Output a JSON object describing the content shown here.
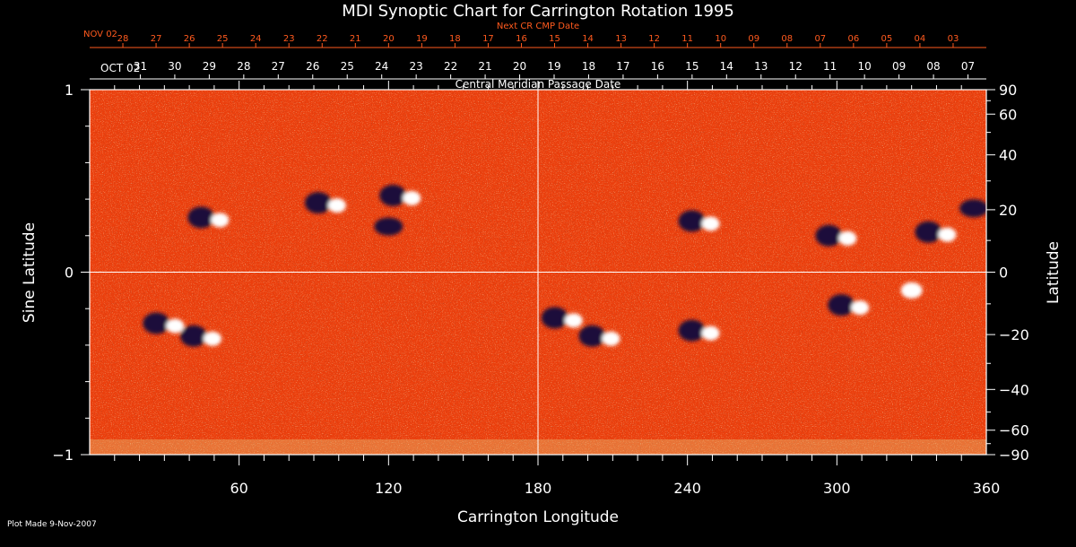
{
  "chart_data": {
    "type": "heatmap",
    "title": "MDI Synoptic Chart for Carrington Rotation 1995",
    "xlabel": "Carrington Longitude",
    "ylabel_left": "Sine Latitude",
    "ylabel_right": "Latitude",
    "xlim": [
      0,
      360
    ],
    "ylim": [
      -1,
      1
    ],
    "x_ticks": [
      60,
      120,
      180,
      240,
      300,
      360
    ],
    "y_ticks_left": [
      -1,
      0,
      1
    ],
    "y_ticks_left_labels": [
      "−1",
      "0",
      "1"
    ],
    "y_ticks_right": [
      -90,
      -60,
      -40,
      -20,
      0,
      20,
      40,
      60,
      90
    ],
    "y_ticks_right_labels": [
      "−90",
      "−60",
      "−40",
      "−20",
      "0",
      "20",
      "40",
      "60",
      "90"
    ],
    "grid_lines": {
      "x": [
        180
      ],
      "y": [
        0
      ]
    },
    "cmp_date_label": "Central Meridian Passage Date",
    "cmp_start_label": "OCT 02",
    "cmp_dates": [
      "31",
      "30",
      "29",
      "28",
      "27",
      "26",
      "25",
      "24",
      "23",
      "22",
      "21",
      "20",
      "19",
      "18",
      "17",
      "16",
      "15",
      "14",
      "13",
      "12",
      "11",
      "10",
      "09",
      "08",
      "07"
    ],
    "next_cr_label": "Next CR CMP Date",
    "next_cr_start_label": "NOV 02",
    "next_cr_dates": [
      "28",
      "27",
      "26",
      "25",
      "24",
      "23",
      "22",
      "21",
      "20",
      "19",
      "18",
      "17",
      "16",
      "15",
      "14",
      "13",
      "12",
      "11",
      "10",
      "09",
      "08",
      "07",
      "06",
      "05",
      "04",
      "03"
    ],
    "colors": {
      "background_field": "#ff4a10",
      "positive_polarity": "#ffffff",
      "negative_polarity": "#1a0a3a",
      "axes": "#ffffff",
      "next_cr": "#ff5a1e"
    },
    "active_regions": [
      {
        "lon": 48,
        "sinlat": 0.3,
        "polarity": "mixed"
      },
      {
        "lon": 95,
        "sinlat": 0.38,
        "polarity": "mixed"
      },
      {
        "lon": 125,
        "sinlat": 0.42,
        "polarity": "mixed"
      },
      {
        "lon": 120,
        "sinlat": 0.25,
        "polarity": "negative"
      },
      {
        "lon": 245,
        "sinlat": 0.28,
        "polarity": "mixed"
      },
      {
        "lon": 300,
        "sinlat": 0.2,
        "polarity": "mixed"
      },
      {
        "lon": 340,
        "sinlat": 0.22,
        "polarity": "mixed"
      },
      {
        "lon": 355,
        "sinlat": 0.35,
        "polarity": "negative"
      },
      {
        "lon": 30,
        "sinlat": -0.28,
        "polarity": "mixed"
      },
      {
        "lon": 45,
        "sinlat": -0.35,
        "polarity": "mixed"
      },
      {
        "lon": 190,
        "sinlat": -0.25,
        "polarity": "mixed"
      },
      {
        "lon": 205,
        "sinlat": -0.35,
        "polarity": "mixed"
      },
      {
        "lon": 245,
        "sinlat": -0.32,
        "polarity": "mixed"
      },
      {
        "lon": 305,
        "sinlat": -0.18,
        "polarity": "mixed"
      },
      {
        "lon": 330,
        "sinlat": -0.1,
        "polarity": "positive"
      }
    ]
  },
  "plot_made": "Plot Made  9-Nov-2007"
}
